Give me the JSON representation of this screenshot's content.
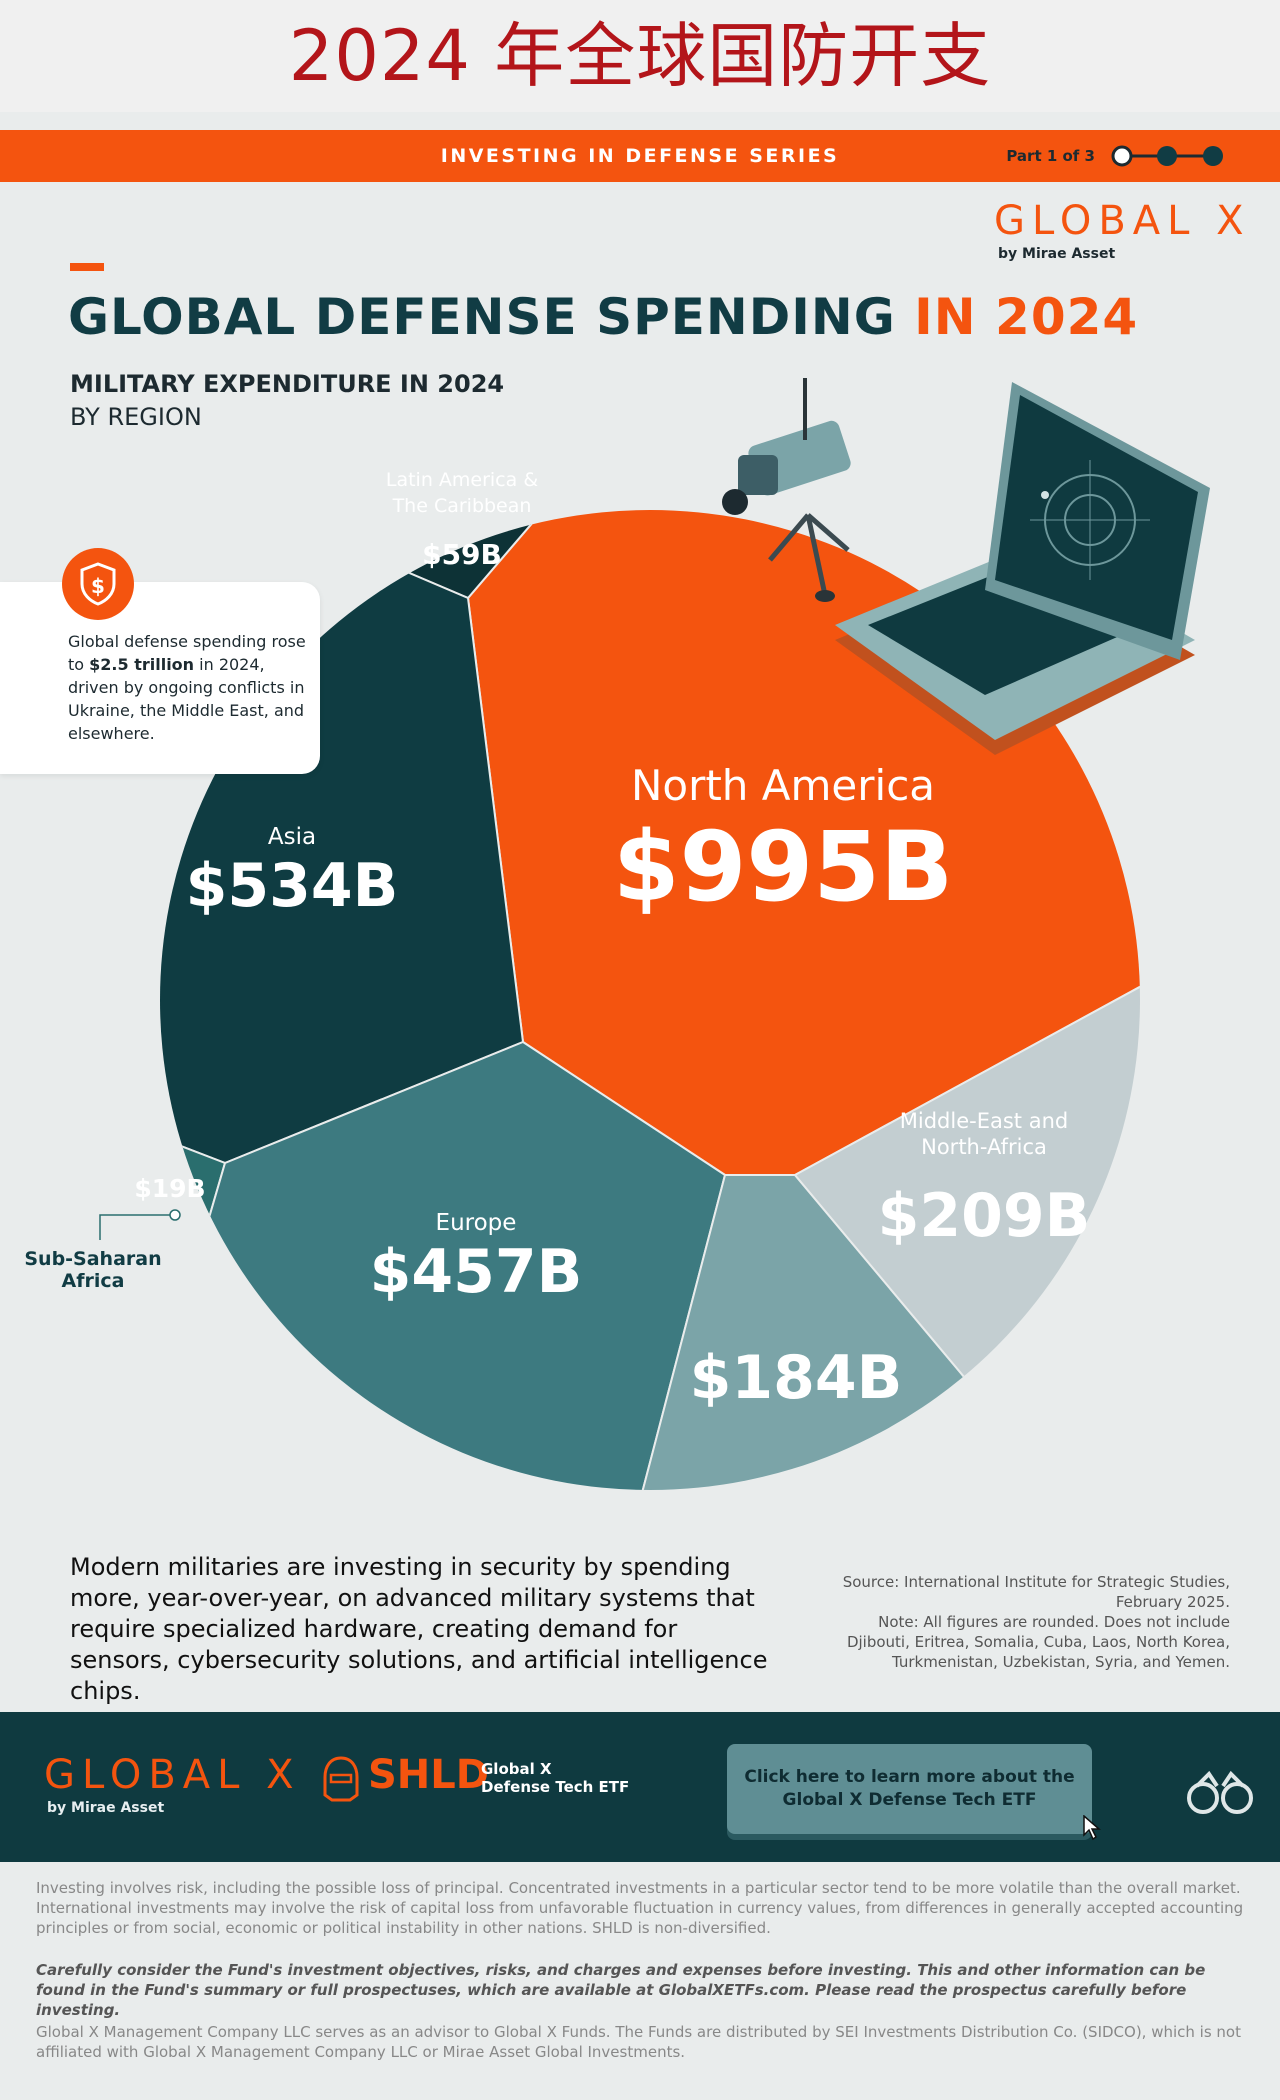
{
  "page_title": "2024 年全球国防开支",
  "series": {
    "label": "INVESTING IN DEFENSE SERIES",
    "part": "Part 1 of 3"
  },
  "logo": {
    "name": "GLOBAL X",
    "sub": "by Mirae Asset"
  },
  "headline": {
    "main": "GLOBAL DEFENSE SPENDING",
    "accent": "IN 2024"
  },
  "subtitle": {
    "line1": "MILITARY EXPENDITURE IN 2024",
    "line2": "BY REGION"
  },
  "callout": {
    "pre": "Global defense spending rose to ",
    "bold": "$2.5 trillion",
    "post": " in 2024, driven by ongoing conflicts in Ukraine, the Middle East, and elsewhere."
  },
  "chart_data": {
    "type": "voronoi-treemap",
    "unit": "USD billions",
    "categories": [
      "North America",
      "Asia",
      "Europe",
      "Middle-East and North-Africa",
      "",
      "Latin America & The Caribbean",
      "Sub-Saharan Africa"
    ],
    "values": [
      995,
      534,
      457,
      209,
      184,
      59,
      19
    ],
    "value_labels": [
      "$995B",
      "$534B",
      "$457B",
      "$209B",
      "$184B",
      "$59B",
      "$19B"
    ],
    "colors": [
      "#f4540f",
      "#0f3c42",
      "#3d7a80",
      "#c3ced1",
      "#7ba4a8",
      "#0d3236",
      "#2a6e6e"
    ]
  },
  "bottom_text": "Modern militaries are investing in security by spending more, year-over-year, on advanced military systems that require specialized hardware, creating demand for sensors, cybersecurity solutions, and artificial intelligence chips.",
  "source": {
    "line1": "Source: International Institute for Strategic Studies,",
    "line2": "February 2025.",
    "line3": "Note: All figures are rounded. Does not include",
    "line4": "Djibouti, Eritrea, Somalia, Cuba, Laos, North Korea,",
    "line5": "Turkmenistan, Uzbekistan, Syria, and Yemen."
  },
  "footer": {
    "logo": "GLOBAL X",
    "logo_sub": "by Mirae Asset",
    "ticker": "SHLD",
    "fund_line1": "Global X",
    "fund_line2": "Defense Tech ETF",
    "cta": "Click here to learn more about the Global X Defense Tech ETF"
  },
  "disclaimer": {
    "d1": "Investing involves risk, including the possible loss of principal. Concentrated investments in a particular sector tend to be more volatile than the overall market. International investments may involve the risk of capital loss from unfavorable fluctuation in currency values, from differences in generally accepted accounting principles or from social, economic or political instability in other nations. SHLD is non-diversified.",
    "d2": "Carefully consider the Fund's investment objectives, risks, and charges and expenses before investing. This and other information can be found in the Fund's summary or full prospectuses, which are available at GlobalXETFs.com. Please read the prospectus carefully before investing.",
    "d3": "Global X Management Company LLC serves as an advisor to Global X Funds. The Funds are distributed by SEI Investments Distribution Co. (SIDCO), which is not affiliated with Global X Management Company LLC or Mirae Asset Global Investments."
  },
  "colors": {
    "accent": "#f4540f",
    "dark": "#0f3a40",
    "title_red": "#b3151a"
  }
}
